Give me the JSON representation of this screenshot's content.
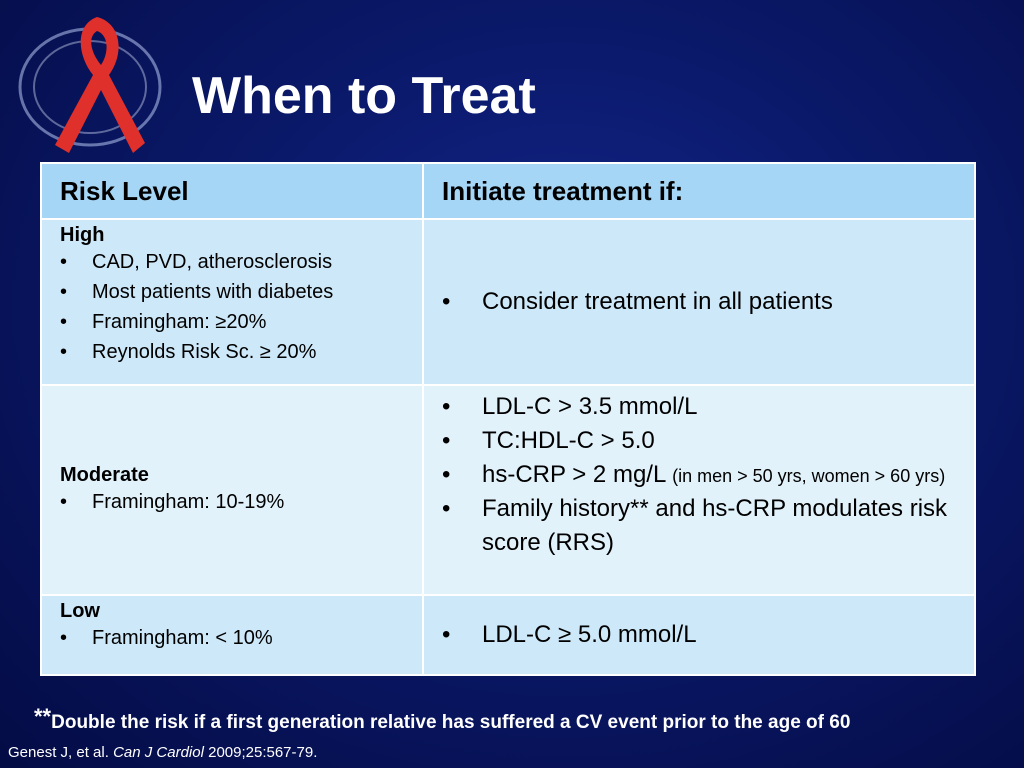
{
  "title": "When to Treat",
  "table": {
    "header": [
      "Risk Level",
      "Initiate treatment if:"
    ],
    "rows": [
      {
        "level": "High",
        "criteria": [
          "CAD, PVD, atherosclerosis",
          "Most patients with diabetes",
          "Framingham: ≥20%",
          "Reynolds Risk Sc. ≥ 20%"
        ],
        "treatment": [
          {
            "text": "Consider treatment in all patients"
          }
        ]
      },
      {
        "level": "Moderate",
        "criteria": [
          "Framingham: 10-19%"
        ],
        "treatment": [
          {
            "text": "LDL-C > 3.5 mmol/L"
          },
          {
            "text": "TC:HDL-C > 5.0"
          },
          {
            "text": "hs-CRP > 2 mg/L",
            "note": "(in men > 50 yrs, women > 60 yrs)"
          },
          {
            "text": "Family history** and hs-CRP modulates risk score (RRS)"
          }
        ]
      },
      {
        "level": "Low",
        "criteria": [
          "Framingham: < 10%"
        ],
        "treatment": [
          {
            "text": "LDL-C ≥ 5.0 mmol/L"
          }
        ]
      }
    ]
  },
  "footnote": {
    "marker": "**",
    "text": "Double the risk if a first generation relative has suffered a CV event prior to the age of 60"
  },
  "citation": {
    "authors": "Genest J, et al.",
    "journal": "Can J Cardiol",
    "details": "2009;25:567-79."
  }
}
